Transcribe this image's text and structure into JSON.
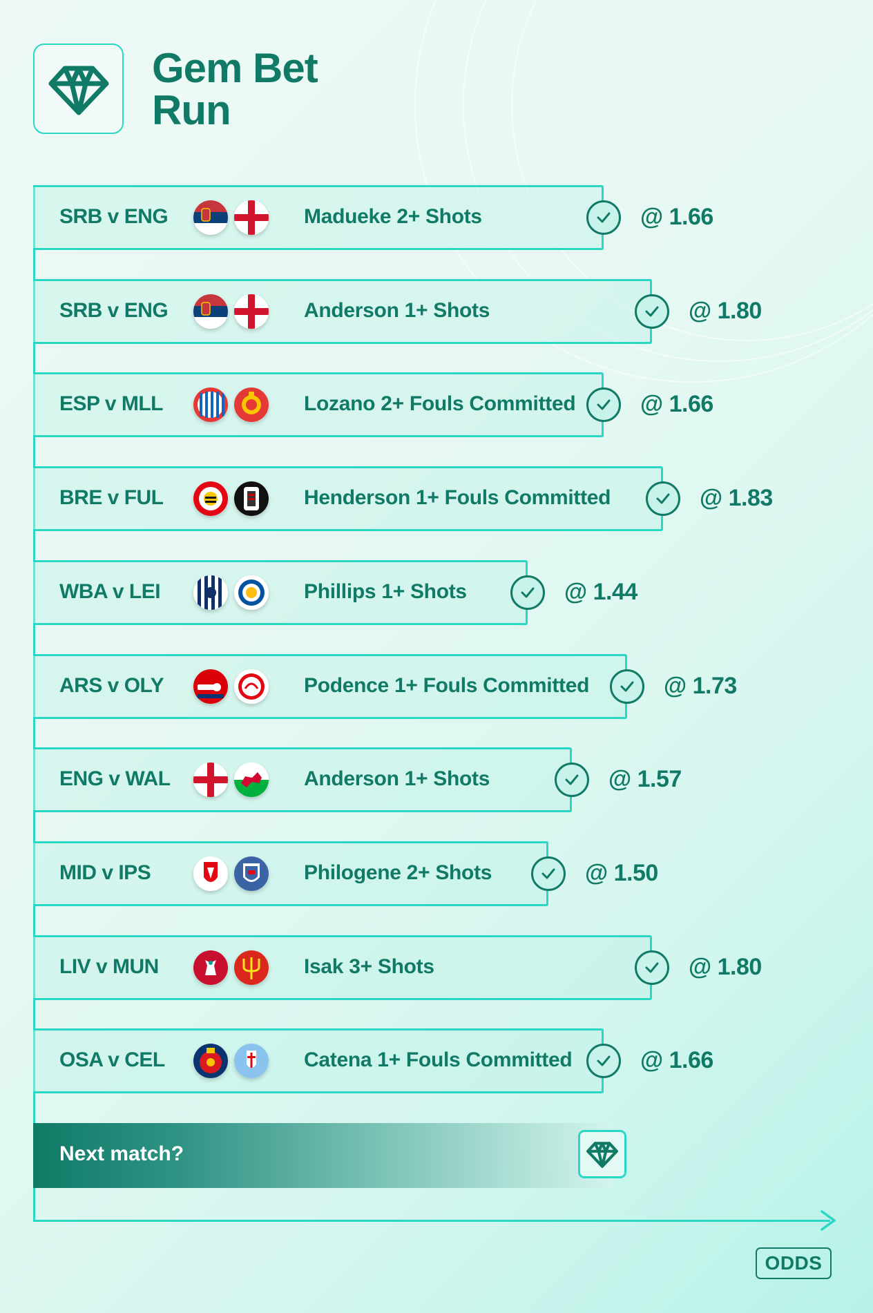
{
  "header": {
    "title_line1": "Gem Bet",
    "title_line2": "Run",
    "logo_icon": "gem-icon"
  },
  "bets": [
    {
      "match": "SRB v ENG",
      "home_badge": "serbia-flag",
      "away_badge": "england-flag",
      "selection": "Madueke 2+ Shots",
      "odds": "@ 1.66",
      "status": "won"
    },
    {
      "match": "SRB v ENG",
      "home_badge": "serbia-flag",
      "away_badge": "england-flag",
      "selection": "Anderson 1+ Shots",
      "odds": "@ 1.80",
      "status": "won"
    },
    {
      "match": "ESP v MLL",
      "home_badge": "espanyol-crest",
      "away_badge": "mallorca-crest",
      "selection": "Lozano 2+ Fouls Committed",
      "odds": "@ 1.66",
      "status": "won"
    },
    {
      "match": "BRE v FUL",
      "home_badge": "brentford-crest",
      "away_badge": "fulham-crest",
      "selection": "Henderson 1+ Fouls Committed",
      "odds": "@ 1.83",
      "status": "won"
    },
    {
      "match": "WBA v LEI",
      "home_badge": "west-brom-crest",
      "away_badge": "leicester-crest",
      "selection": "Phillips 1+ Shots",
      "odds": "@ 1.44",
      "status": "won"
    },
    {
      "match": "ARS v OLY",
      "home_badge": "arsenal-crest",
      "away_badge": "olympiacos-crest",
      "selection": "Podence 1+ Fouls Committed",
      "odds": "@ 1.73",
      "status": "won"
    },
    {
      "match": "ENG v WAL",
      "home_badge": "england-flag",
      "away_badge": "wales-flag",
      "selection": "Anderson 1+ Shots",
      "odds": "@ 1.57",
      "status": "won"
    },
    {
      "match": "MID v IPS",
      "home_badge": "middlesbrough-crest",
      "away_badge": "ipswich-crest",
      "selection": "Philogene 2+ Shots",
      "odds": "@ 1.50",
      "status": "won"
    },
    {
      "match": "LIV v MUN",
      "home_badge": "liverpool-crest",
      "away_badge": "man-utd-crest",
      "selection": "Isak 3+ Shots",
      "odds": "@ 1.80",
      "status": "won"
    },
    {
      "match": "OSA v CEL",
      "home_badge": "osasuna-crest",
      "away_badge": "celta-crest",
      "selection": "Catena 1+ Fouls Committed",
      "odds": "@ 1.66",
      "status": "won"
    }
  ],
  "next": {
    "label": "Next match?",
    "icon": "gem-icon"
  },
  "brand": {
    "label": "ODDS"
  },
  "colors": {
    "accent": "#2ad6c4",
    "text": "#117a66",
    "background": "#e8f8f4"
  }
}
